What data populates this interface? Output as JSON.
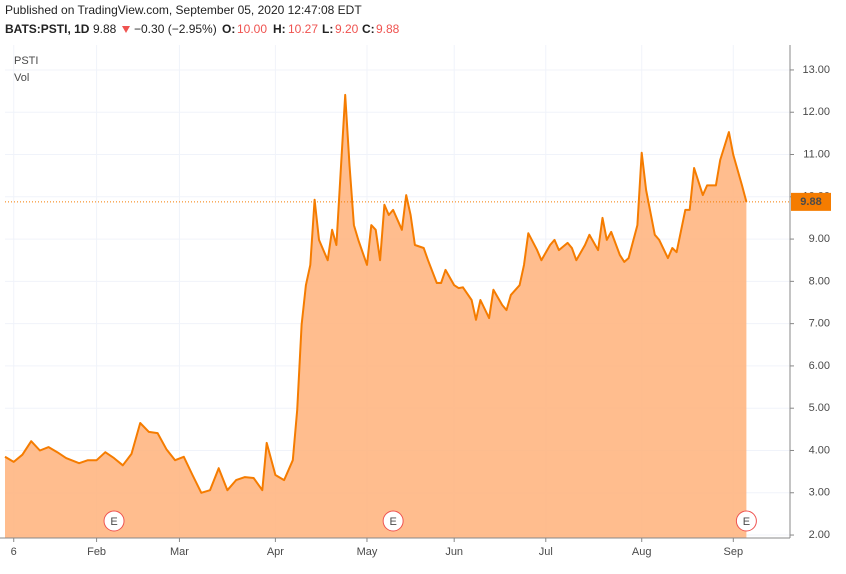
{
  "header": {
    "published": "Published on TradingView.com, September 05, 2020 12:47:08 EDT",
    "symbol": "BATS:PSTI, 1D",
    "last": "9.88",
    "change": "−0.30 (−2.95%)",
    "o_label": "O:",
    "o": "10.00",
    "h_label": "H:",
    "h": "10.27",
    "l_label": "L:",
    "l": "9.20",
    "c_label": "C:",
    "c": "9.88"
  },
  "chart_data": {
    "type": "area",
    "name": "PSTI",
    "volume_label": "Vol",
    "color": "#f57c00",
    "fill": "#ffb27a",
    "x": [
      0,
      2,
      4,
      6,
      8,
      10,
      12,
      14,
      17,
      19,
      21,
      23,
      25,
      27,
      29,
      31,
      33,
      35,
      37,
      39,
      41,
      43,
      45,
      47,
      49,
      51,
      53,
      55,
      57,
      59,
      60,
      62,
      64,
      66,
      67,
      68,
      69,
      70,
      71,
      72,
      74,
      75,
      76,
      77,
      78,
      79,
      80,
      81,
      83,
      84,
      85,
      86,
      87,
      88,
      89,
      91,
      92,
      93,
      94,
      96,
      97,
      99,
      100,
      101,
      103,
      104,
      105,
      107,
      108,
      109,
      111,
      112,
      114,
      115,
      116,
      118,
      119,
      120,
      122,
      123,
      125,
      126,
      127,
      129,
      130,
      131,
      133,
      134,
      136,
      137,
      138,
      139,
      141,
      142,
      143,
      145,
      146,
      147,
      149,
      150,
      152,
      153,
      154,
      156,
      157,
      158,
      160,
      161,
      163,
      164,
      166,
      167,
      169,
      170
    ],
    "values": [
      3.85,
      3.73,
      3.9,
      4.22,
      4.0,
      4.08,
      3.96,
      3.82,
      3.7,
      3.77,
      3.77,
      3.96,
      3.82,
      3.65,
      3.92,
      4.65,
      4.44,
      4.41,
      4.03,
      3.77,
      3.85,
      3.42,
      3.0,
      3.06,
      3.58,
      3.06,
      3.3,
      3.37,
      3.35,
      3.06,
      4.18,
      3.42,
      3.3,
      3.77,
      4.96,
      6.97,
      7.91,
      8.39,
      9.93,
      8.98,
      8.5,
      9.22,
      8.86,
      10.64,
      12.41,
      10.75,
      9.33,
      8.98,
      8.39,
      9.33,
      9.22,
      8.5,
      9.81,
      9.57,
      9.69,
      9.22,
      10.04,
      9.57,
      8.86,
      8.79,
      8.5,
      7.96,
      7.96,
      8.27,
      7.91,
      7.84,
      7.86,
      7.56,
      7.09,
      7.56,
      7.13,
      7.8,
      7.44,
      7.32,
      7.68,
      7.91,
      8.39,
      9.14,
      8.74,
      8.5,
      8.86,
      8.98,
      8.74,
      8.91,
      8.79,
      8.5,
      8.86,
      9.1,
      8.74,
      9.5,
      8.98,
      9.17,
      8.62,
      8.46,
      8.55,
      9.33,
      11.04,
      10.16,
      9.1,
      8.98,
      8.55,
      8.79,
      8.69,
      9.69,
      9.69,
      10.68,
      10.04,
      10.27,
      10.27,
      10.87,
      11.53,
      10.99,
      10.27,
      9.88
    ],
    "last_value": 9.88,
    "xlim": [
      0,
      180
    ],
    "ylim": [
      1.93,
      13.59
    ],
    "xticks": [
      {
        "value": 2,
        "label": "6"
      },
      {
        "value": 21,
        "label": "Feb"
      },
      {
        "value": 40,
        "label": "Mar"
      },
      {
        "value": 62,
        "label": "Apr"
      },
      {
        "value": 83,
        "label": "May"
      },
      {
        "value": 103,
        "label": "Jun"
      },
      {
        "value": 124,
        "label": "Jul"
      },
      {
        "value": 146,
        "label": "Aug"
      },
      {
        "value": 167,
        "label": "Sep"
      }
    ],
    "yticks": [
      {
        "value": 2,
        "label": "2.00"
      },
      {
        "value": 3,
        "label": "3.00"
      },
      {
        "value": 4,
        "label": "4.00"
      },
      {
        "value": 5,
        "label": "5.00"
      },
      {
        "value": 6,
        "label": "6.00"
      },
      {
        "value": 7,
        "label": "7.00"
      },
      {
        "value": 8,
        "label": "8.00"
      },
      {
        "value": 9,
        "label": "9.00"
      },
      {
        "value": 10,
        "label": "10.00"
      },
      {
        "value": 11,
        "label": "11.00"
      },
      {
        "value": 12,
        "label": "12.00"
      },
      {
        "value": 13,
        "label": "13.00"
      }
    ],
    "grid": true,
    "earnings": [
      {
        "x": 25,
        "label": "E"
      },
      {
        "x": 89,
        "label": "E"
      },
      {
        "x": 170,
        "label": "E"
      }
    ]
  }
}
